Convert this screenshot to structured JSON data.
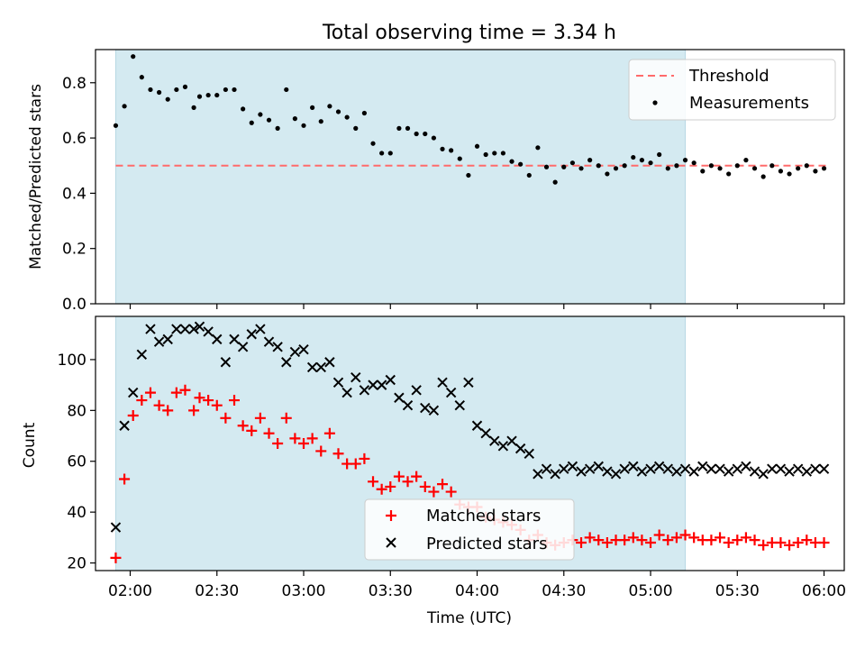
{
  "figure": {
    "title": "Total observing time = 3.34 h",
    "xlabel": "Time (UTC)",
    "x_ticks": [
      "02:00",
      "02:30",
      "03:00",
      "03:30",
      "04:00",
      "04:30",
      "05:00",
      "05:30",
      "06:00"
    ]
  },
  "colors": {
    "shade": "#d4eaf1",
    "threshold": "#ff6b6b",
    "measurements": "#000000",
    "matched": "#ff0000",
    "predicted": "#000000"
  },
  "chart_data": [
    {
      "type": "scatter",
      "panel": "top",
      "ylabel": "Matched/Predicted stars",
      "xlim": [
        "01:48",
        "06:07"
      ],
      "ylim": [
        0,
        0.92
      ],
      "y_ticks": [
        "0.0",
        "0.2",
        "0.4",
        "0.6",
        "0.8"
      ],
      "y_tick_values": [
        0,
        0.2,
        0.4,
        0.6,
        0.8
      ],
      "shaded_interval": [
        "01:55",
        "05:12"
      ],
      "legend_position": "top-right",
      "threshold": {
        "name": "Threshold",
        "value": 0.5,
        "x_range": [
          "01:55",
          "06:01"
        ]
      },
      "series": [
        {
          "name": "Measurements",
          "marker": "dot",
          "x": [
            "01:55",
            "01:58",
            "02:01",
            "02:04",
            "02:07",
            "02:10",
            "02:13",
            "02:16",
            "02:19",
            "02:22",
            "02:24",
            "02:27",
            "02:30",
            "02:33",
            "02:36",
            "02:39",
            "02:42",
            "02:45",
            "02:48",
            "02:51",
            "02:54",
            "02:57",
            "03:00",
            "03:03",
            "03:06",
            "03:09",
            "03:12",
            "03:15",
            "03:18",
            "03:21",
            "03:24",
            "03:27",
            "03:30",
            "03:33",
            "03:36",
            "03:39",
            "03:42",
            "03:45",
            "03:48",
            "03:51",
            "03:54",
            "03:57",
            "04:00",
            "04:03",
            "04:06",
            "04:09",
            "04:12",
            "04:15",
            "04:18",
            "04:21",
            "04:24",
            "04:27",
            "04:30",
            "04:33",
            "04:36",
            "04:39",
            "04:42",
            "04:45",
            "04:48",
            "04:51",
            "04:54",
            "04:57",
            "05:00",
            "05:03",
            "05:06",
            "05:09",
            "05:12",
            "05:15",
            "05:18",
            "05:21",
            "05:24",
            "05:27",
            "05:30",
            "05:33",
            "05:36",
            "05:39",
            "05:42",
            "05:45",
            "05:48",
            "05:51",
            "05:54",
            "05:57",
            "06:00"
          ],
          "y": [
            0.645,
            0.715,
            0.895,
            0.82,
            0.775,
            0.765,
            0.74,
            0.775,
            0.785,
            0.71,
            0.75,
            0.755,
            0.755,
            0.775,
            0.775,
            0.705,
            0.655,
            0.685,
            0.665,
            0.635,
            0.775,
            0.67,
            0.645,
            0.71,
            0.66,
            0.715,
            0.695,
            0.675,
            0.635,
            0.69,
            0.58,
            0.545,
            0.545,
            0.635,
            0.635,
            0.615,
            0.615,
            0.6,
            0.56,
            0.555,
            0.525,
            0.465,
            0.57,
            0.54,
            0.545,
            0.545,
            0.515,
            0.505,
            0.465,
            0.565,
            0.495,
            0.44,
            0.495,
            0.51,
            0.49,
            0.52,
            0.5,
            0.47,
            0.49,
            0.5,
            0.53,
            0.52,
            0.51,
            0.54,
            0.49,
            0.5,
            0.52,
            0.51,
            0.48,
            0.5,
            0.49,
            0.47,
            0.5,
            0.52,
            0.49,
            0.46,
            0.5,
            0.48,
            0.47,
            0.49,
            0.5,
            0.48,
            0.49
          ]
        }
      ]
    },
    {
      "type": "scatter",
      "panel": "bottom",
      "ylabel": "Count",
      "xlim": [
        "01:48",
        "06:07"
      ],
      "ylim": [
        17,
        117
      ],
      "y_ticks": [
        "20",
        "40",
        "60",
        "80",
        "100"
      ],
      "y_tick_values": [
        20,
        40,
        60,
        80,
        100
      ],
      "shaded_interval": [
        "01:55",
        "05:12"
      ],
      "legend_position": "bottom-center",
      "series": [
        {
          "name": "Matched stars",
          "marker": "plus",
          "x": [
            "01:55",
            "01:58",
            "02:01",
            "02:04",
            "02:07",
            "02:10",
            "02:13",
            "02:16",
            "02:19",
            "02:22",
            "02:24",
            "02:27",
            "02:30",
            "02:33",
            "02:36",
            "02:39",
            "02:42",
            "02:45",
            "02:48",
            "02:51",
            "02:54",
            "02:57",
            "03:00",
            "03:03",
            "03:06",
            "03:09",
            "03:12",
            "03:15",
            "03:18",
            "03:21",
            "03:24",
            "03:27",
            "03:30",
            "03:33",
            "03:36",
            "03:39",
            "03:42",
            "03:45",
            "03:48",
            "03:51",
            "03:54",
            "03:57",
            "04:00",
            "04:03",
            "04:06",
            "04:09",
            "04:12",
            "04:15",
            "04:18",
            "04:21",
            "04:24",
            "04:27",
            "04:30",
            "04:33",
            "04:36",
            "04:39",
            "04:42",
            "04:45",
            "04:48",
            "04:51",
            "04:54",
            "04:57",
            "05:00",
            "05:03",
            "05:06",
            "05:09",
            "05:12",
            "05:15",
            "05:18",
            "05:21",
            "05:24",
            "05:27",
            "05:30",
            "05:33",
            "05:36",
            "05:39",
            "05:42",
            "05:45",
            "05:48",
            "05:51",
            "05:54",
            "05:57",
            "06:00"
          ],
          "y": [
            22,
            53,
            78,
            84,
            87,
            82,
            80,
            87,
            88,
            80,
            85,
            84,
            82,
            77,
            84,
            74,
            72,
            77,
            71,
            67,
            77,
            69,
            67,
            69,
            64,
            71,
            63,
            59,
            59,
            61,
            52,
            49,
            50,
            54,
            52,
            54,
            50,
            48,
            51,
            48,
            43,
            42,
            42,
            38,
            37,
            36,
            35,
            33,
            29,
            31,
            28,
            27,
            28,
            29,
            28,
            30,
            29,
            28,
            29,
            29,
            30,
            29,
            28,
            31,
            29,
            30,
            31,
            30,
            29,
            29,
            30,
            28,
            29,
            30,
            29,
            27,
            28,
            28,
            27,
            28,
            29,
            28,
            28
          ]
        },
        {
          "name": "Predicted stars",
          "marker": "x",
          "x": [
            "01:55",
            "01:58",
            "02:01",
            "02:04",
            "02:07",
            "02:10",
            "02:13",
            "02:16",
            "02:19",
            "02:22",
            "02:24",
            "02:27",
            "02:30",
            "02:33",
            "02:36",
            "02:39",
            "02:42",
            "02:45",
            "02:48",
            "02:51",
            "02:54",
            "02:57",
            "03:00",
            "03:03",
            "03:06",
            "03:09",
            "03:12",
            "03:15",
            "03:18",
            "03:21",
            "03:24",
            "03:27",
            "03:30",
            "03:33",
            "03:36",
            "03:39",
            "03:42",
            "03:45",
            "03:48",
            "03:51",
            "03:54",
            "03:57",
            "04:00",
            "04:03",
            "04:06",
            "04:09",
            "04:12",
            "04:15",
            "04:18",
            "04:21",
            "04:24",
            "04:27",
            "04:30",
            "04:33",
            "04:36",
            "04:39",
            "04:42",
            "04:45",
            "04:48",
            "04:51",
            "04:54",
            "04:57",
            "05:00",
            "05:03",
            "05:06",
            "05:09",
            "05:12",
            "05:15",
            "05:18",
            "05:21",
            "05:24",
            "05:27",
            "05:30",
            "05:33",
            "05:36",
            "05:39",
            "05:42",
            "05:45",
            "05:48",
            "05:51",
            "05:54",
            "05:57",
            "06:00"
          ],
          "y": [
            34,
            74,
            87,
            102,
            112,
            107,
            108,
            112,
            112,
            112,
            113,
            111,
            108,
            99,
            108,
            105,
            110,
            112,
            107,
            105,
            99,
            103,
            104,
            97,
            97,
            99,
            91,
            87,
            93,
            88,
            90,
            90,
            92,
            85,
            82,
            88,
            81,
            80,
            91,
            87,
            82,
            91,
            74,
            71,
            68,
            66,
            68,
            65,
            63,
            55,
            57,
            55,
            57,
            58,
            56,
            57,
            58,
            56,
            55,
            57,
            58,
            56,
            57,
            58,
            57,
            56,
            57,
            56,
            58,
            57,
            57,
            56,
            57,
            58,
            56,
            55,
            57,
            57,
            56,
            57,
            56,
            57,
            57
          ]
        }
      ]
    }
  ]
}
